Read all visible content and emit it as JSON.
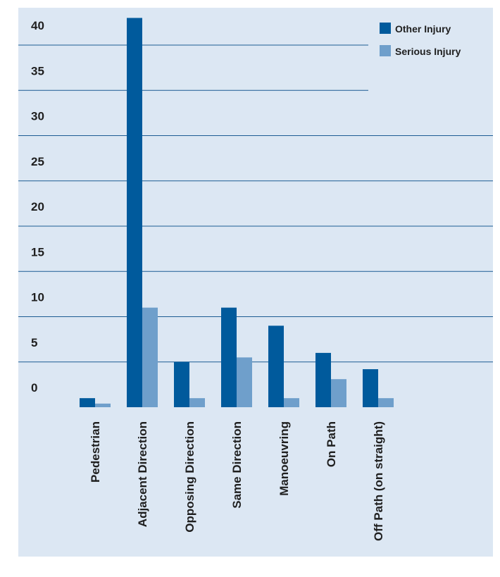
{
  "chart_data": {
    "type": "bar",
    "categories": [
      "Pedestrian",
      "Adjacent Direction",
      "Opposing Direction",
      "Same Direction",
      "Manoeuvring",
      "On Path",
      "Off Path (on straight)"
    ],
    "series": [
      {
        "name": "Other Injury",
        "values": [
          1,
          43,
          5,
          11,
          9,
          6,
          4.2
        ],
        "color": "#005a9c"
      },
      {
        "name": "Serious Injury",
        "values": [
          0.4,
          11,
          1,
          5.5,
          1,
          3.1,
          1
        ],
        "color": "#6f9fcb"
      }
    ],
    "yticks": [
      0,
      5,
      10,
      15,
      20,
      25,
      30,
      35,
      40
    ],
    "ylim": [
      0,
      43
    ],
    "grid": true,
    "legend_position": "top-right"
  }
}
